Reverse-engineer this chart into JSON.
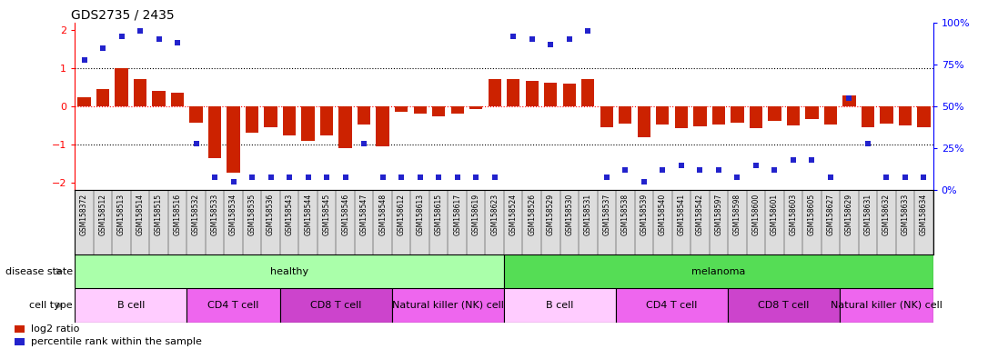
{
  "title": "GDS2735 / 2435",
  "samples": [
    "GSM158372",
    "GSM158512",
    "GSM158513",
    "GSM158514",
    "GSM158515",
    "GSM158516",
    "GSM158532",
    "GSM158533",
    "GSM158534",
    "GSM158535",
    "GSM158536",
    "GSM158543",
    "GSM158544",
    "GSM158545",
    "GSM158546",
    "GSM158547",
    "GSM158548",
    "GSM158612",
    "GSM158613",
    "GSM158615",
    "GSM158617",
    "GSM158619",
    "GSM158623",
    "GSM158524",
    "GSM158526",
    "GSM158529",
    "GSM158530",
    "GSM158531",
    "GSM158537",
    "GSM158538",
    "GSM158539",
    "GSM158540",
    "GSM158541",
    "GSM158542",
    "GSM158597",
    "GSM158598",
    "GSM158600",
    "GSM158601",
    "GSM158603",
    "GSM158605",
    "GSM158627",
    "GSM158629",
    "GSM158631",
    "GSM158632",
    "GSM158633",
    "GSM158634"
  ],
  "log2_ratio": [
    0.25,
    0.45,
    1.0,
    0.72,
    0.42,
    0.37,
    -0.42,
    -1.35,
    -1.75,
    -0.68,
    -0.55,
    -0.75,
    -0.9,
    -0.75,
    -1.1,
    -0.48,
    -1.05,
    -0.15,
    -0.18,
    -0.25,
    -0.2,
    -0.08,
    0.72,
    0.72,
    0.68,
    0.63,
    0.6,
    0.72,
    -0.55,
    -0.45,
    -0.8,
    -0.48,
    -0.58,
    -0.52,
    -0.48,
    -0.42,
    -0.58,
    -0.38,
    -0.5,
    -0.32,
    -0.48,
    0.28,
    -0.55,
    -0.45,
    -0.5,
    -0.55
  ],
  "percentile": [
    78,
    85,
    92,
    95,
    90,
    88,
    28,
    8,
    5,
    8,
    8,
    8,
    8,
    8,
    8,
    28,
    8,
    8,
    8,
    8,
    8,
    8,
    8,
    92,
    90,
    87,
    90,
    95,
    8,
    12,
    5,
    12,
    15,
    12,
    12,
    8,
    15,
    12,
    18,
    18,
    8,
    55,
    28,
    8,
    8,
    8
  ],
  "disease_state_groups": [
    {
      "label": "healthy",
      "start": 0,
      "end": 23,
      "color": "#aaffaa"
    },
    {
      "label": "melanoma",
      "start": 23,
      "end": 46,
      "color": "#55dd55"
    }
  ],
  "cell_type_groups": [
    {
      "label": "B cell",
      "start": 0,
      "end": 6,
      "color": "#ffccff"
    },
    {
      "label": "CD4 T cell",
      "start": 6,
      "end": 11,
      "color": "#ee66ee"
    },
    {
      "label": "CD8 T cell",
      "start": 11,
      "end": 17,
      "color": "#cc44cc"
    },
    {
      "label": "Natural killer (NK) cell",
      "start": 17,
      "end": 23,
      "color": "#ee66ee"
    },
    {
      "label": "B cell",
      "start": 23,
      "end": 29,
      "color": "#ffccff"
    },
    {
      "label": "CD4 T cell",
      "start": 29,
      "end": 35,
      "color": "#ee66ee"
    },
    {
      "label": "CD8 T cell",
      "start": 35,
      "end": 41,
      "color": "#cc44cc"
    },
    {
      "label": "Natural killer (NK) cell",
      "start": 41,
      "end": 46,
      "color": "#ee66ee"
    }
  ],
  "bar_color": "#cc2200",
  "dot_color": "#2222cc",
  "bg_color": "#ffffff",
  "label_fontsize": 8,
  "tick_label_fontsize": 5.5,
  "annotation_fontsize": 8,
  "row_label_fontsize": 8
}
